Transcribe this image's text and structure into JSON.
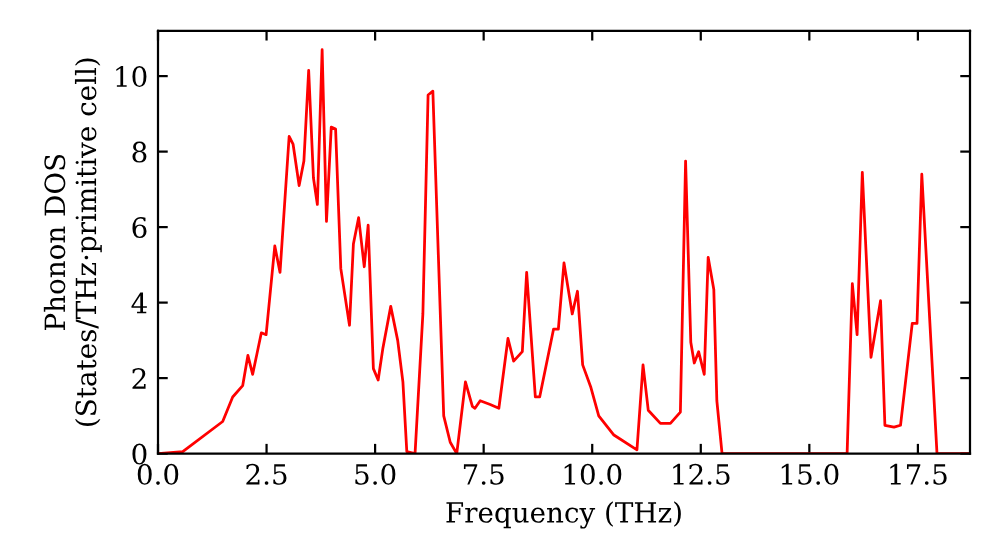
{
  "chart_data": {
    "type": "line",
    "xlabel": "Frequency (THz)",
    "ylabel": "Phonon DOS\n(States/THz·primitive cell)",
    "xlim": [
      0,
      18.7
    ],
    "ylim": [
      0,
      11.2
    ],
    "xticks": [
      {
        "value": 0,
        "label": "0.0"
      },
      {
        "value": 2.5,
        "label": "2.5"
      },
      {
        "value": 5,
        "label": "5.0"
      },
      {
        "value": 7.5,
        "label": "7.5"
      },
      {
        "value": 10,
        "label": "10.0"
      },
      {
        "value": 12.5,
        "label": "12.5"
      },
      {
        "value": 15,
        "label": "15.0"
      },
      {
        "value": 17.5,
        "label": "17.5"
      }
    ],
    "yticks": [
      0,
      2,
      4,
      6,
      8,
      10
    ],
    "grid": false,
    "legend": false,
    "marker": "none",
    "line_style": "solid",
    "series": [
      {
        "color": "#ff0000",
        "x": [
          0,
          0.57,
          1.49,
          1.72,
          1.95,
          2.07,
          2.18,
          2.38,
          2.49,
          2.69,
          2.81,
          3.02,
          3.11,
          3.25,
          3.36,
          3.47,
          3.58,
          3.67,
          3.78,
          3.88,
          3.99,
          4.09,
          4.21,
          4.41,
          4.5,
          4.62,
          4.75,
          4.84,
          4.96,
          5.07,
          5.18,
          5.36,
          5.52,
          5.64,
          5.73,
          5.92,
          6.1,
          6.22,
          6.33,
          6.58,
          6.73,
          6.88,
          7.08,
          7.24,
          7.3,
          7.42,
          7.65,
          7.85,
          8.06,
          8.19,
          8.39,
          8.49,
          8.69,
          8.79,
          9.11,
          9.22,
          9.35,
          9.54,
          9.66,
          9.78,
          9.97,
          10.15,
          10.49,
          11.03,
          11.17,
          11.29,
          11.57,
          11.8,
          12.03,
          12.15,
          12.27,
          12.35,
          12.45,
          12.58,
          12.67,
          12.8,
          12.87,
          12.99,
          15.87,
          15.99,
          16.1,
          16.22,
          16.42,
          16.64,
          16.74,
          16.95,
          17.1,
          17.37,
          17.48,
          17.59,
          17.94,
          18.7
        ],
        "values": [
          0,
          0.05,
          0.85,
          1.5,
          1.8,
          2.6,
          2.1,
          3.2,
          3.15,
          5.5,
          4.8,
          8.4,
          8.2,
          7.1,
          7.75,
          10.15,
          7.3,
          6.6,
          10.7,
          6.15,
          8.65,
          8.6,
          4.9,
          3.4,
          5.55,
          6.25,
          4.95,
          6.05,
          2.25,
          1.95,
          2.8,
          3.9,
          3.0,
          1.9,
          0.05,
          0,
          3.7,
          9.5,
          9.6,
          1.0,
          0.3,
          0,
          1.9,
          1.25,
          1.2,
          1.4,
          1.3,
          1.2,
          3.05,
          2.45,
          2.7,
          4.8,
          1.5,
          1.5,
          3.3,
          3.3,
          5.05,
          3.7,
          4.3,
          2.35,
          1.75,
          1.0,
          0.5,
          0.1,
          2.35,
          1.15,
          0.8,
          0.8,
          1.1,
          7.75,
          2.95,
          2.4,
          2.7,
          2.1,
          5.2,
          4.35,
          1.4,
          0,
          0,
          4.5,
          3.15,
          7.45,
          2.55,
          4.05,
          0.75,
          0.7,
          0.75,
          3.45,
          3.45,
          7.4,
          0,
          0
        ]
      }
    ]
  }
}
